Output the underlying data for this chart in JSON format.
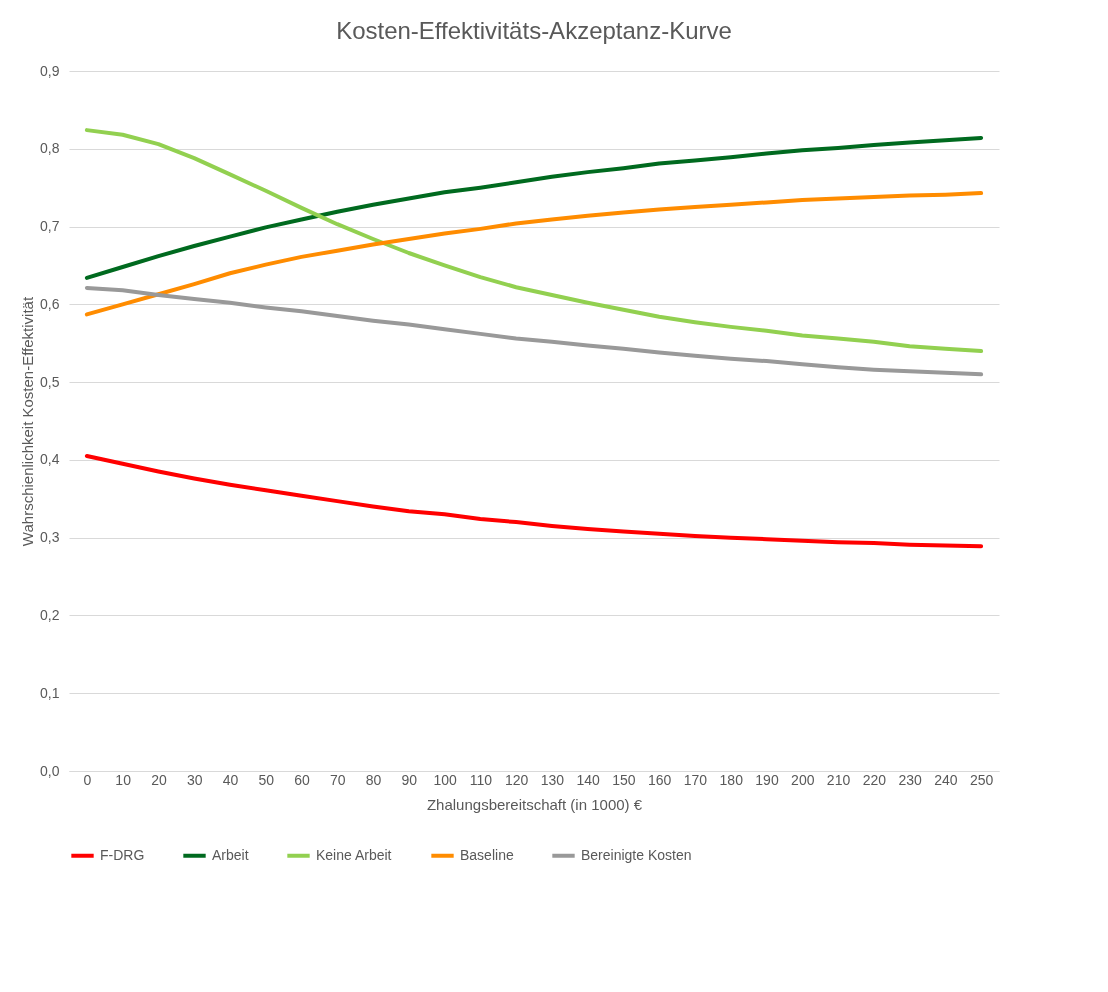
{
  "chart_data": {
    "type": "line",
    "title": "Kosten-Effektivitäts-Akzeptanz-Kurve",
    "xlabel": "Zhalungsbereitschaft (in 1000) €",
    "ylabel": "Wahrschienlichkeit Kosten-Effektivität",
    "categories": [
      "0",
      "10",
      "20",
      "30",
      "40",
      "50",
      "60",
      "70",
      "80",
      "90",
      "100",
      "110",
      "120",
      "130",
      "140",
      "150",
      "160",
      "170",
      "180",
      "190",
      "200",
      "210",
      "220",
      "230",
      "240",
      "250"
    ],
    "series": [
      {
        "name": "F-DRG",
        "color": "#ff0000",
        "values": [
          0.405,
          0.395,
          0.385,
          0.376,
          0.368,
          0.361,
          0.354,
          0.347,
          0.34,
          0.334,
          0.33,
          0.324,
          0.32,
          0.315,
          0.311,
          0.308,
          0.305,
          0.302,
          0.3,
          0.298,
          0.296,
          0.294,
          0.293,
          0.291,
          0.29,
          0.289
        ]
      },
      {
        "name": "Arbeit",
        "color": "#006a1f",
        "values": [
          0.634,
          0.648,
          0.662,
          0.675,
          0.687,
          0.699,
          0.709,
          0.719,
          0.728,
          0.736,
          0.744,
          0.75,
          0.757,
          0.764,
          0.77,
          0.775,
          0.781,
          0.785,
          0.789,
          0.794,
          0.798,
          0.801,
          0.805,
          0.808,
          0.811,
          0.814
        ]
      },
      {
        "name": "Keine Arbeit",
        "color": "#92d050",
        "values": [
          0.824,
          0.818,
          0.806,
          0.788,
          0.767,
          0.746,
          0.724,
          0.703,
          0.684,
          0.666,
          0.65,
          0.635,
          0.622,
          0.612,
          0.602,
          0.593,
          0.584,
          0.577,
          0.571,
          0.566,
          0.56,
          0.556,
          0.552,
          0.546,
          0.543,
          0.54
        ]
      },
      {
        "name": "Baseline",
        "color": "#ff8c00",
        "values": [
          0.587,
          0.6,
          0.613,
          0.626,
          0.64,
          0.651,
          0.661,
          0.669,
          0.677,
          0.684,
          0.691,
          0.697,
          0.704,
          0.709,
          0.714,
          0.718,
          0.722,
          0.725,
          0.728,
          0.731,
          0.734,
          0.736,
          0.738,
          0.74,
          0.741,
          0.743
        ]
      },
      {
        "name": "Bereinigte Kosten",
        "color": "#999999",
        "values": [
          0.621,
          0.618,
          0.612,
          0.607,
          0.602,
          0.596,
          0.591,
          0.585,
          0.579,
          0.574,
          0.568,
          0.562,
          0.556,
          0.552,
          0.547,
          0.543,
          0.538,
          0.534,
          0.53,
          0.527,
          0.523,
          0.519,
          0.516,
          0.514,
          0.512,
          0.51
        ]
      }
    ],
    "ylim": [
      0,
      0.9
    ],
    "yticks": [
      {
        "value": 0,
        "label": "0,0"
      },
      {
        "value": 0.1,
        "label": "0,1"
      },
      {
        "value": 0.2,
        "label": "0,2"
      },
      {
        "value": 0.3,
        "label": "0,3"
      },
      {
        "value": 0.4,
        "label": "0,4"
      },
      {
        "value": 0.5,
        "label": "0,5"
      },
      {
        "value": 0.6,
        "label": "0,6"
      },
      {
        "value": 0.7,
        "label": "0,7"
      },
      {
        "value": 0.8,
        "label": "0,8"
      },
      {
        "value": 0.9,
        "label": "0,9"
      }
    ],
    "grid": "y",
    "legend": "bottom",
    "marker": "none",
    "line_style": "solid"
  }
}
